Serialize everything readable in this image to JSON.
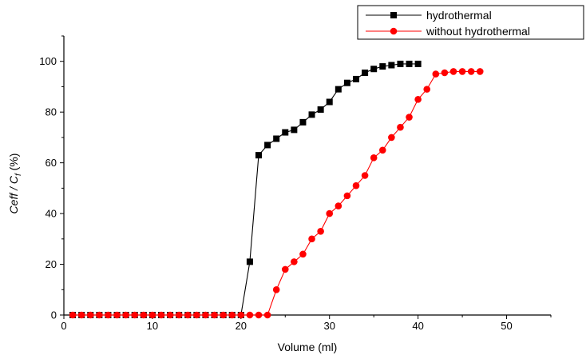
{
  "chart_data": {
    "type": "line",
    "title": "",
    "xlabel": "Volume (ml)",
    "ylabel_parts": {
      "main": "Ceff / C",
      "sub": "f",
      "unit": " (%)"
    },
    "xlim": [
      0,
      55
    ],
    "ylim": [
      0,
      110
    ],
    "xticks": [
      0,
      10,
      20,
      30,
      40,
      50
    ],
    "yticks": [
      0,
      20,
      40,
      60,
      80,
      100
    ],
    "grid": false,
    "legend_position": "top-right",
    "series": [
      {
        "name": "hydrothermal",
        "color": "#000000",
        "marker": "square",
        "x": [
          1,
          2,
          3,
          4,
          5,
          6,
          7,
          8,
          9,
          10,
          11,
          12,
          13,
          14,
          15,
          16,
          17,
          18,
          19,
          20,
          21,
          22,
          23,
          24,
          25,
          26,
          27,
          28,
          29,
          30,
          31,
          32,
          33,
          34,
          35,
          36,
          37,
          38,
          39,
          40
        ],
        "y": [
          0,
          0,
          0,
          0,
          0,
          0,
          0,
          0,
          0,
          0,
          0,
          0,
          0,
          0,
          0,
          0,
          0,
          0,
          0,
          0,
          21,
          63,
          67,
          69.5,
          72,
          73,
          76,
          79,
          81,
          84,
          89,
          91.5,
          93,
          95.5,
          97,
          98,
          98.5,
          99,
          99,
          99
        ]
      },
      {
        "name": "without hydrothermal",
        "color": "#ff0000",
        "marker": "circle",
        "x": [
          1,
          2,
          3,
          4,
          5,
          6,
          7,
          8,
          9,
          10,
          11,
          12,
          13,
          14,
          15,
          16,
          17,
          18,
          19,
          20,
          21,
          22,
          23,
          24,
          25,
          26,
          27,
          28,
          29,
          30,
          31,
          32,
          33,
          34,
          35,
          36,
          37,
          38,
          39,
          40,
          41,
          42,
          43,
          44,
          45,
          46,
          47
        ],
        "y": [
          0,
          0,
          0,
          0,
          0,
          0,
          0,
          0,
          0,
          0,
          0,
          0,
          0,
          0,
          0,
          0,
          0,
          0,
          0,
          0,
          0,
          0,
          0,
          10,
          18,
          21,
          24,
          30,
          33,
          40,
          43,
          47,
          51,
          55,
          62,
          65,
          70,
          74,
          78,
          85,
          89,
          95,
          95.5,
          96,
          96,
          96,
          96
        ]
      }
    ]
  }
}
